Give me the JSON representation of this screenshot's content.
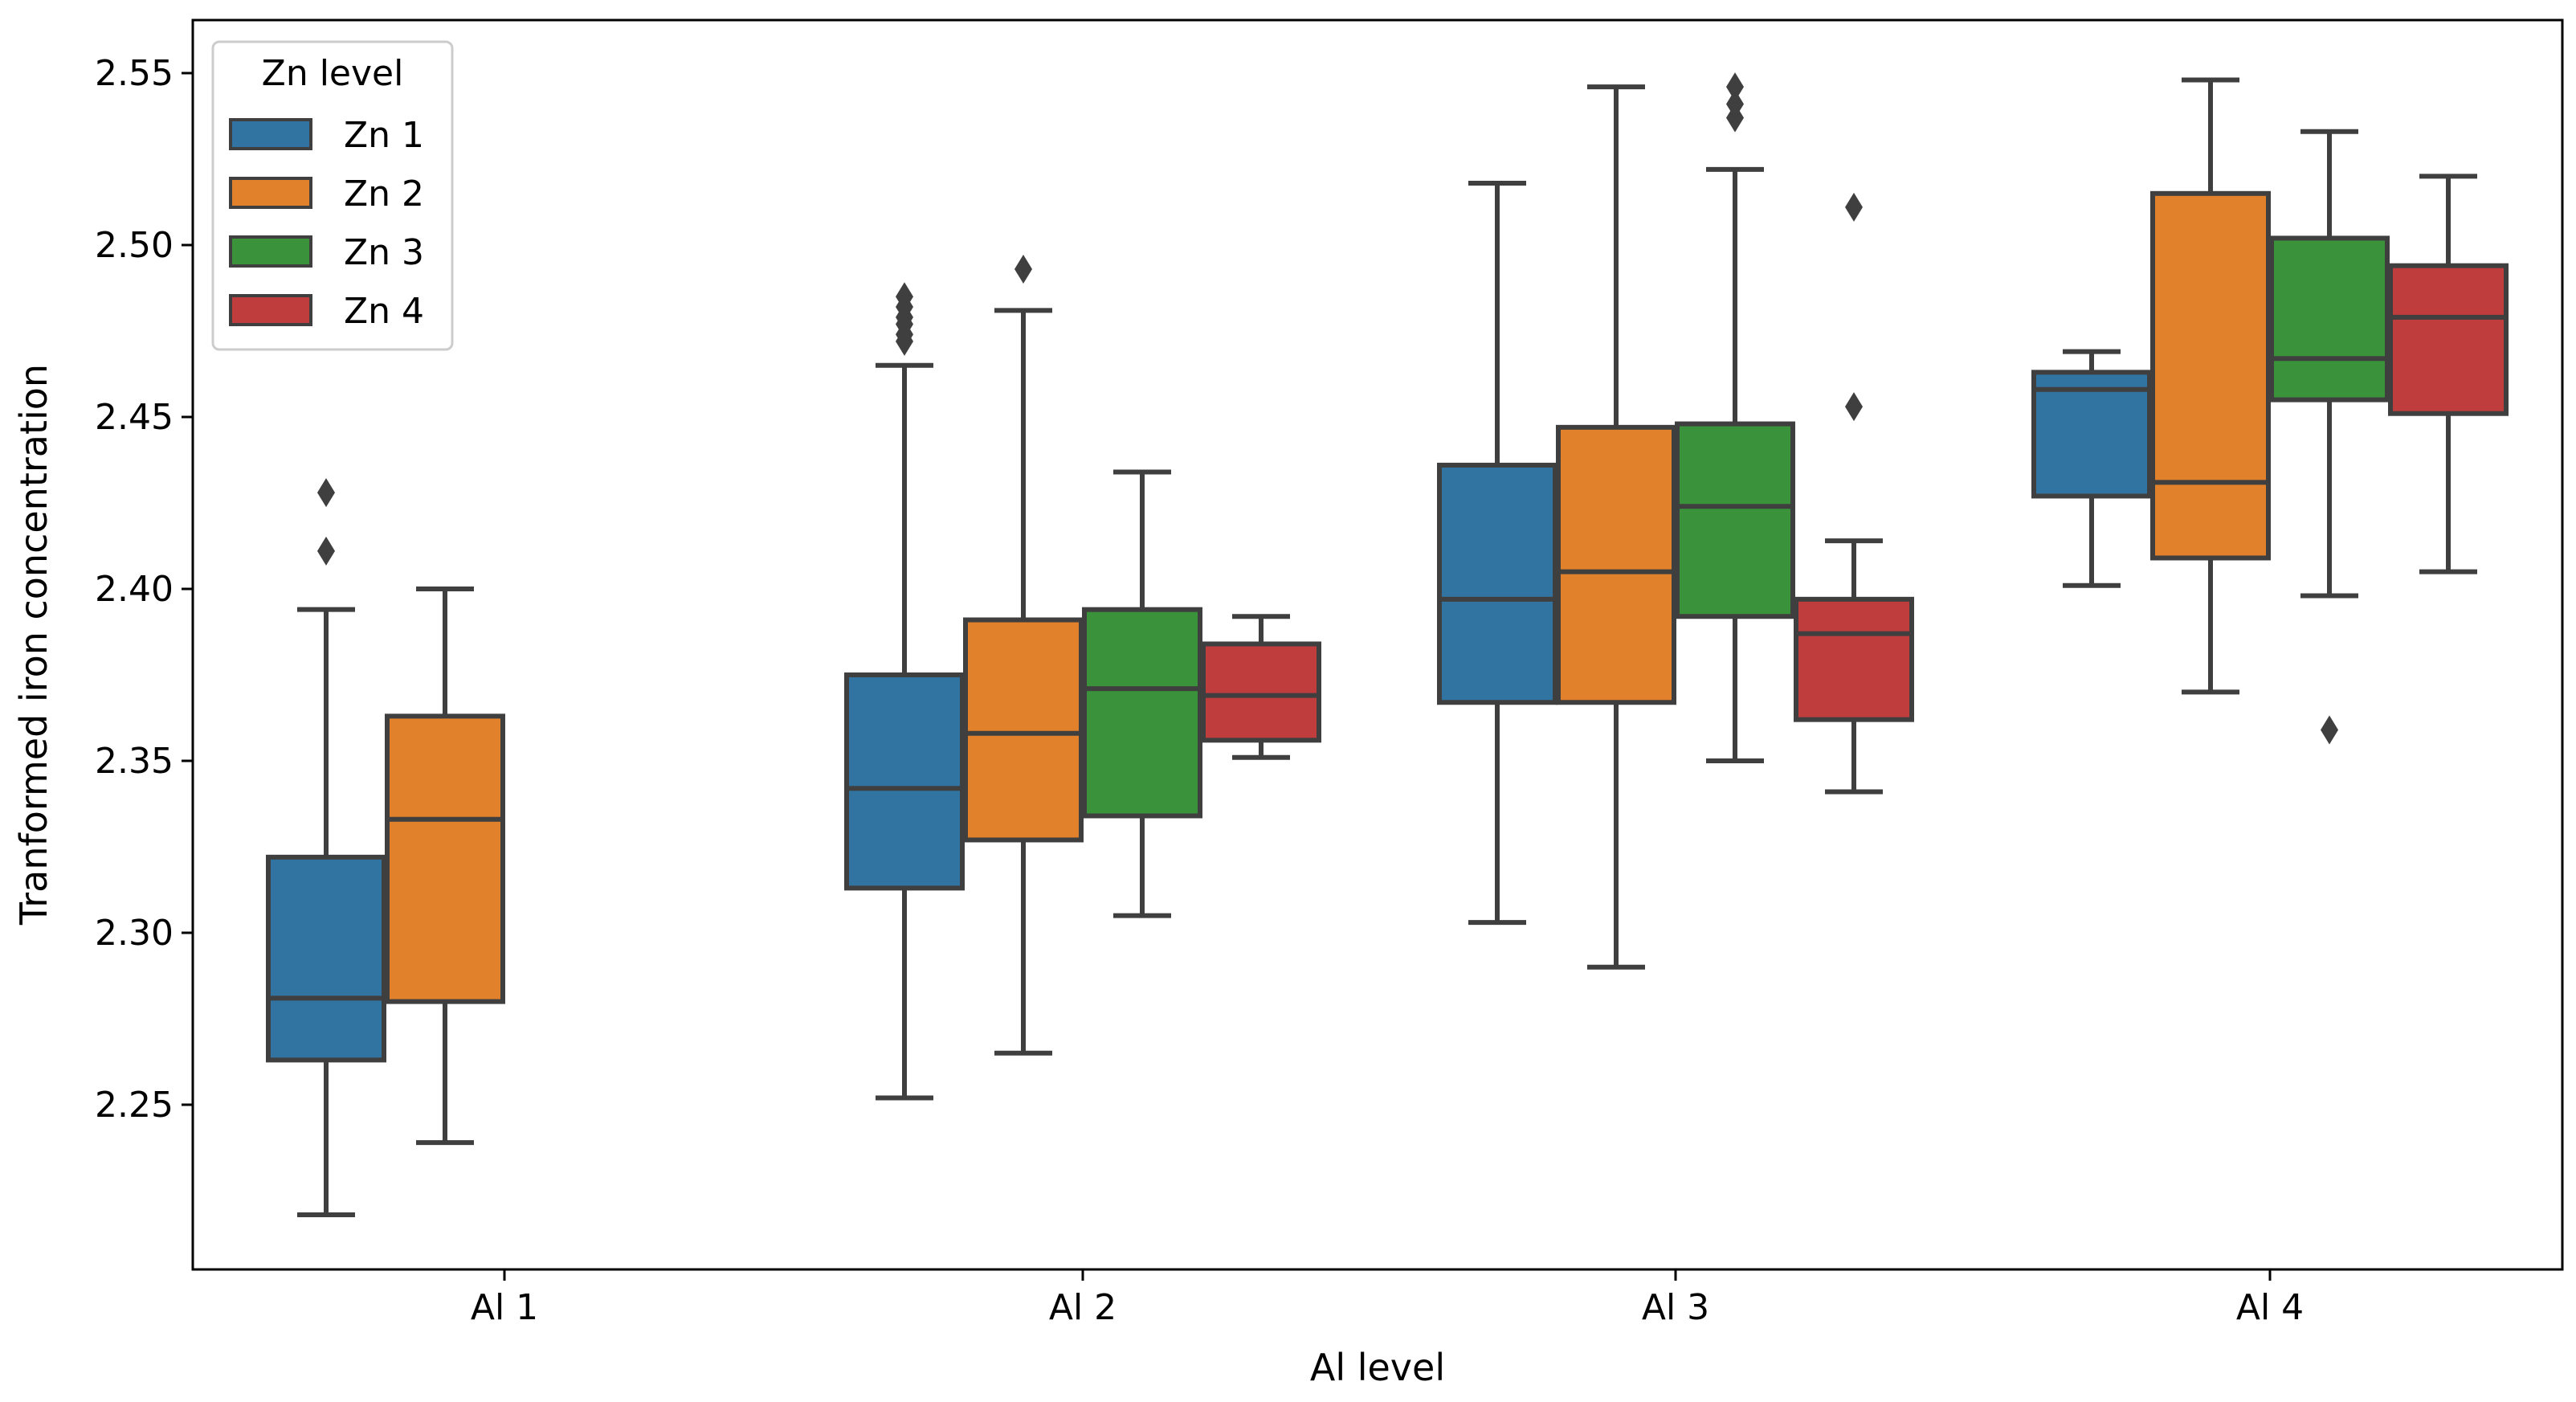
{
  "chart_data": {
    "type": "boxplot",
    "xlabel": "Al level",
    "ylabel": "Tranformed iron concentration",
    "categories": [
      "Al 1",
      "Al 2",
      "Al 3",
      "Al 4"
    ],
    "ylim": [
      2.2,
      2.565
    ],
    "yticks": [
      "2.25",
      "2.30",
      "2.35",
      "2.40",
      "2.45",
      "2.50",
      "2.55"
    ],
    "grid": false,
    "legend": {
      "title": "Zn level",
      "position": "top-left"
    },
    "series": [
      {
        "name": "Zn 1",
        "color": "#3274a1",
        "boxes": [
          {
            "category": "Al 1",
            "whisker_low": 2.218,
            "q1": 2.263,
            "median": 2.281,
            "q3": 2.322,
            "whisker_high": 2.394,
            "outliers": [
              2.411,
              2.428
            ]
          },
          {
            "category": "Al 2",
            "whisker_low": 2.252,
            "q1": 2.313,
            "median": 2.342,
            "q3": 2.375,
            "whisker_high": 2.465,
            "outliers": [
              2.472,
              2.474,
              2.477,
              2.479,
              2.482,
              2.485
            ]
          },
          {
            "category": "Al 3",
            "whisker_low": 2.303,
            "q1": 2.367,
            "median": 2.397,
            "q3": 2.436,
            "whisker_high": 2.518,
            "outliers": []
          },
          {
            "category": "Al 4",
            "whisker_low": 2.401,
            "q1": 2.427,
            "median": 2.458,
            "q3": 2.463,
            "whisker_high": 2.469,
            "outliers": []
          }
        ]
      },
      {
        "name": "Zn 2",
        "color": "#e1812c",
        "boxes": [
          {
            "category": "Al 1",
            "whisker_low": 2.239,
            "q1": 2.28,
            "median": 2.333,
            "q3": 2.363,
            "whisker_high": 2.4,
            "outliers": []
          },
          {
            "category": "Al 2",
            "whisker_low": 2.265,
            "q1": 2.327,
            "median": 2.358,
            "q3": 2.391,
            "whisker_high": 2.481,
            "outliers": [
              2.493
            ]
          },
          {
            "category": "Al 3",
            "whisker_low": 2.29,
            "q1": 2.367,
            "median": 2.405,
            "q3": 2.447,
            "whisker_high": 2.546,
            "outliers": []
          },
          {
            "category": "Al 4",
            "whisker_low": 2.37,
            "q1": 2.409,
            "median": 2.431,
            "q3": 2.515,
            "whisker_high": 2.548,
            "outliers": []
          }
        ]
      },
      {
        "name": "Zn 3",
        "color": "#3a923a",
        "boxes": [
          {
            "category": "Al 2",
            "whisker_low": 2.305,
            "q1": 2.334,
            "median": 2.371,
            "q3": 2.394,
            "whisker_high": 2.434,
            "outliers": []
          },
          {
            "category": "Al 3",
            "whisker_low": 2.35,
            "q1": 2.392,
            "median": 2.424,
            "q3": 2.448,
            "whisker_high": 2.522,
            "outliers": [
              2.537,
              2.541,
              2.546
            ]
          },
          {
            "category": "Al 4",
            "whisker_low": 2.398,
            "q1": 2.455,
            "median": 2.467,
            "q3": 2.502,
            "whisker_high": 2.533,
            "outliers": [
              2.359
            ]
          }
        ]
      },
      {
        "name": "Zn 4",
        "color": "#c03d3e",
        "boxes": [
          {
            "category": "Al 2",
            "whisker_low": 2.351,
            "q1": 2.356,
            "median": 2.369,
            "q3": 2.384,
            "whisker_high": 2.392,
            "outliers": []
          },
          {
            "category": "Al 3",
            "whisker_low": 2.341,
            "q1": 2.362,
            "median": 2.387,
            "q3": 2.397,
            "whisker_high": 2.414,
            "outliers": [
              2.453,
              2.511
            ]
          },
          {
            "category": "Al 4",
            "whisker_low": 2.405,
            "q1": 2.451,
            "median": 2.479,
            "q3": 2.494,
            "whisker_high": 2.52,
            "outliers": []
          }
        ]
      }
    ]
  }
}
